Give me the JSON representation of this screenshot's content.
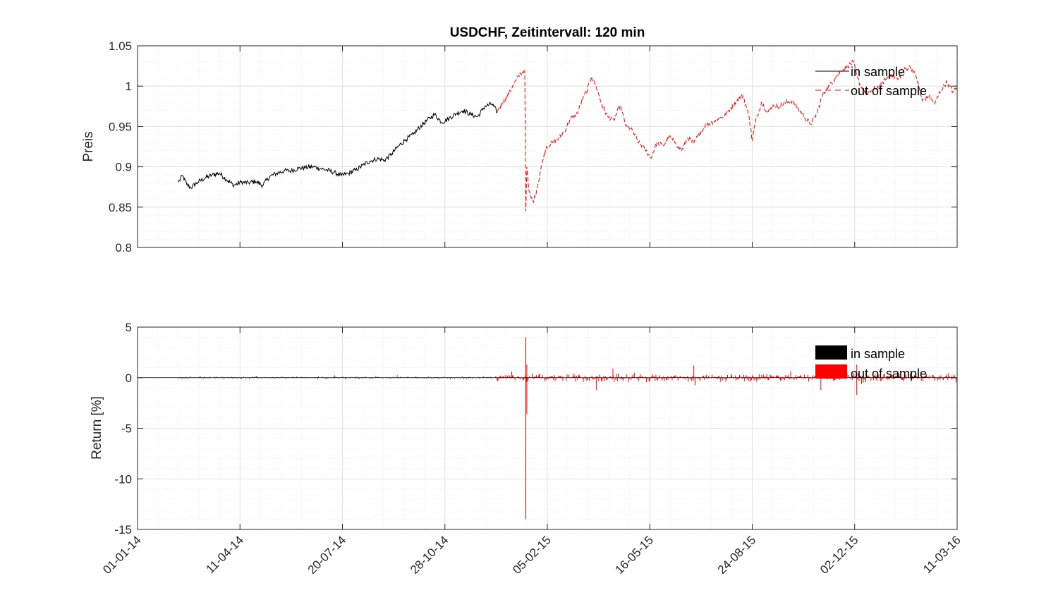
{
  "chart_data": [
    {
      "type": "line",
      "title": "USDCHF, Zeitintervall: 120 min",
      "xlabel": "",
      "ylabel": "Preis",
      "ylim": [
        0.8,
        1.05
      ],
      "yticks": [
        0.8,
        0.85,
        0.9,
        0.95,
        1,
        1.05
      ],
      "ytick_labels": [
        "0.8",
        "0.85",
        "0.9",
        "0.95",
        "1",
        "1.05"
      ],
      "xlim": [
        "2014-01-01",
        "2016-03-11"
      ],
      "xticks": [
        "2014-01-01",
        "2014-04-11",
        "2014-07-20",
        "2014-10-28",
        "2015-02-05",
        "2015-05-16",
        "2015-08-24",
        "2015-12-02",
        "2016-03-11"
      ],
      "grid": true,
      "minor_grid": true,
      "legend_position": "top-right",
      "series": [
        {
          "name": "in sample",
          "color": "#000000",
          "style": "solid",
          "x": [
            "2014-02-10",
            "2014-02-14",
            "2014-02-18",
            "2014-02-22",
            "2014-03-01",
            "2014-03-08",
            "2014-03-15",
            "2014-03-22",
            "2014-03-29",
            "2014-04-05",
            "2014-04-12",
            "2014-04-19",
            "2014-04-26",
            "2014-05-03",
            "2014-05-10",
            "2014-05-17",
            "2014-05-24",
            "2014-05-31",
            "2014-06-07",
            "2014-06-14",
            "2014-06-21",
            "2014-06-28",
            "2014-07-05",
            "2014-07-12",
            "2014-07-19",
            "2014-07-26",
            "2014-08-02",
            "2014-08-09",
            "2014-08-16",
            "2014-08-23",
            "2014-08-30",
            "2014-09-06",
            "2014-09-13",
            "2014-09-20",
            "2014-09-27",
            "2014-10-04",
            "2014-10-11",
            "2014-10-18",
            "2014-10-25",
            "2014-11-01",
            "2014-11-08",
            "2014-11-15",
            "2014-11-22",
            "2014-11-29",
            "2014-12-06",
            "2014-12-13",
            "2014-12-18"
          ],
          "y": [
            0.881,
            0.889,
            0.878,
            0.874,
            0.881,
            0.886,
            0.89,
            0.892,
            0.884,
            0.877,
            0.881,
            0.88,
            0.882,
            0.877,
            0.888,
            0.892,
            0.895,
            0.895,
            0.898,
            0.899,
            0.9,
            0.898,
            0.896,
            0.893,
            0.889,
            0.892,
            0.896,
            0.902,
            0.907,
            0.91,
            0.908,
            0.916,
            0.926,
            0.934,
            0.94,
            0.95,
            0.958,
            0.965,
            0.955,
            0.96,
            0.966,
            0.97,
            0.965,
            0.962,
            0.975,
            0.978,
            0.968
          ]
        },
        {
          "name": "out of sample",
          "color": "#ff0000",
          "style": "dashed",
          "x": [
            "2014-12-18",
            "2014-12-23",
            "2014-12-28",
            "2015-01-02",
            "2015-01-06",
            "2015-01-10",
            "2015-01-14",
            "2015-01-15",
            "2015-01-16",
            "2015-01-18",
            "2015-01-20",
            "2015-01-23",
            "2015-01-27",
            "2015-01-31",
            "2015-02-04",
            "2015-02-10",
            "2015-02-16",
            "2015-02-22",
            "2015-02-28",
            "2015-03-06",
            "2015-03-12",
            "2015-03-16",
            "2015-03-20",
            "2015-03-24",
            "2015-03-30",
            "2015-04-05",
            "2015-04-11",
            "2015-04-17",
            "2015-04-23",
            "2015-04-29",
            "2015-05-05",
            "2015-05-11",
            "2015-05-17",
            "2015-05-23",
            "2015-05-29",
            "2015-06-04",
            "2015-06-10",
            "2015-06-16",
            "2015-06-22",
            "2015-06-28",
            "2015-07-04",
            "2015-07-10",
            "2015-07-16",
            "2015-07-22",
            "2015-07-28",
            "2015-08-03",
            "2015-08-09",
            "2015-08-15",
            "2015-08-21",
            "2015-08-24",
            "2015-08-27",
            "2015-09-02",
            "2015-09-08",
            "2015-09-14",
            "2015-09-20",
            "2015-09-26",
            "2015-10-02",
            "2015-10-08",
            "2015-10-14",
            "2015-10-20",
            "2015-10-26",
            "2015-11-01",
            "2015-11-07",
            "2015-11-13",
            "2015-11-19",
            "2015-11-25",
            "2015-12-01",
            "2015-12-04",
            "2015-12-08",
            "2015-12-14",
            "2015-12-20",
            "2015-12-26",
            "2016-01-01",
            "2016-01-07",
            "2016-01-13",
            "2016-01-19",
            "2016-01-25",
            "2016-01-31",
            "2016-02-06",
            "2016-02-12",
            "2016-02-18",
            "2016-02-24",
            "2016-03-01",
            "2016-03-07",
            "2016-03-11"
          ],
          "y": [
            0.968,
            0.979,
            0.988,
            1.0,
            1.008,
            1.016,
            1.02,
            0.845,
            0.9,
            0.87,
            0.862,
            0.858,
            0.88,
            0.905,
            0.925,
            0.93,
            0.935,
            0.945,
            0.96,
            0.966,
            0.986,
            0.995,
            1.012,
            1.002,
            0.978,
            0.962,
            0.958,
            0.976,
            0.95,
            0.945,
            0.93,
            0.922,
            0.911,
            0.93,
            0.926,
            0.937,
            0.93,
            0.92,
            0.936,
            0.929,
            0.943,
            0.952,
            0.955,
            0.96,
            0.963,
            0.973,
            0.982,
            0.988,
            0.962,
            0.932,
            0.955,
            0.98,
            0.968,
            0.976,
            0.975,
            0.98,
            0.982,
            0.972,
            0.962,
            0.953,
            0.966,
            0.99,
            1.0,
            1.01,
            1.02,
            1.025,
            1.03,
            1.012,
            1.0,
            0.99,
            0.996,
            1.0,
            1.008,
            1.015,
            1.008,
            1.02,
            1.024,
            1.012,
            0.982,
            0.988,
            0.978,
            0.995,
            1.005,
            0.993,
            0.998
          ]
        }
      ]
    },
    {
      "type": "area",
      "title": "",
      "xlabel": "",
      "ylabel": "Return [%]",
      "ylim": [
        -15,
        5
      ],
      "yticks": [
        -15,
        -10,
        -5,
        0,
        5
      ],
      "ytick_labels": [
        "-15",
        "-10",
        "-5",
        "0",
        "5"
      ],
      "xlim": [
        "2014-01-01",
        "2016-03-11"
      ],
      "xticks": [
        "2014-01-01",
        "2014-04-11",
        "2014-07-20",
        "2014-10-28",
        "2015-02-05",
        "2015-05-16",
        "2015-08-24",
        "2015-12-02",
        "2016-03-11"
      ],
      "xtick_labels": [
        "01-01-14",
        "11-04-14",
        "20-07-14",
        "28-10-14",
        "05-02-15",
        "16-05-15",
        "24-08-15",
        "02-12-15",
        "11-03-16"
      ],
      "grid": true,
      "minor_grid": true,
      "legend_position": "top-right",
      "series": [
        {
          "name": "in sample",
          "color": "#000000",
          "x_range": [
            "2014-02-10",
            "2014-12-18"
          ],
          "typical_range": [
            -0.15,
            0.15
          ],
          "max": 0.95,
          "min": -0.3
        },
        {
          "name": "out of sample",
          "color": "#ff0000",
          "x_range": [
            "2014-12-18",
            "2016-03-11"
          ],
          "typical_range": [
            -0.4,
            0.4
          ],
          "max": 4.0,
          "min": -14.0,
          "spikes": [
            {
              "x": "2015-01-15",
              "y": -14.0
            },
            {
              "x": "2015-01-15",
              "y": 4.0
            },
            {
              "x": "2015-01-16",
              "y": 1.3
            },
            {
              "x": "2015-01-16",
              "y": -3.6
            },
            {
              "x": "2015-06-28",
              "y": 1.2
            },
            {
              "x": "2015-12-04",
              "y": -1.7
            },
            {
              "x": "2015-12-04",
              "y": 1.3
            },
            {
              "x": "2015-04-10",
              "y": 0.9
            },
            {
              "x": "2015-03-25",
              "y": -1.2
            },
            {
              "x": "2015-10-30",
              "y": -1.2
            }
          ]
        }
      ]
    }
  ]
}
